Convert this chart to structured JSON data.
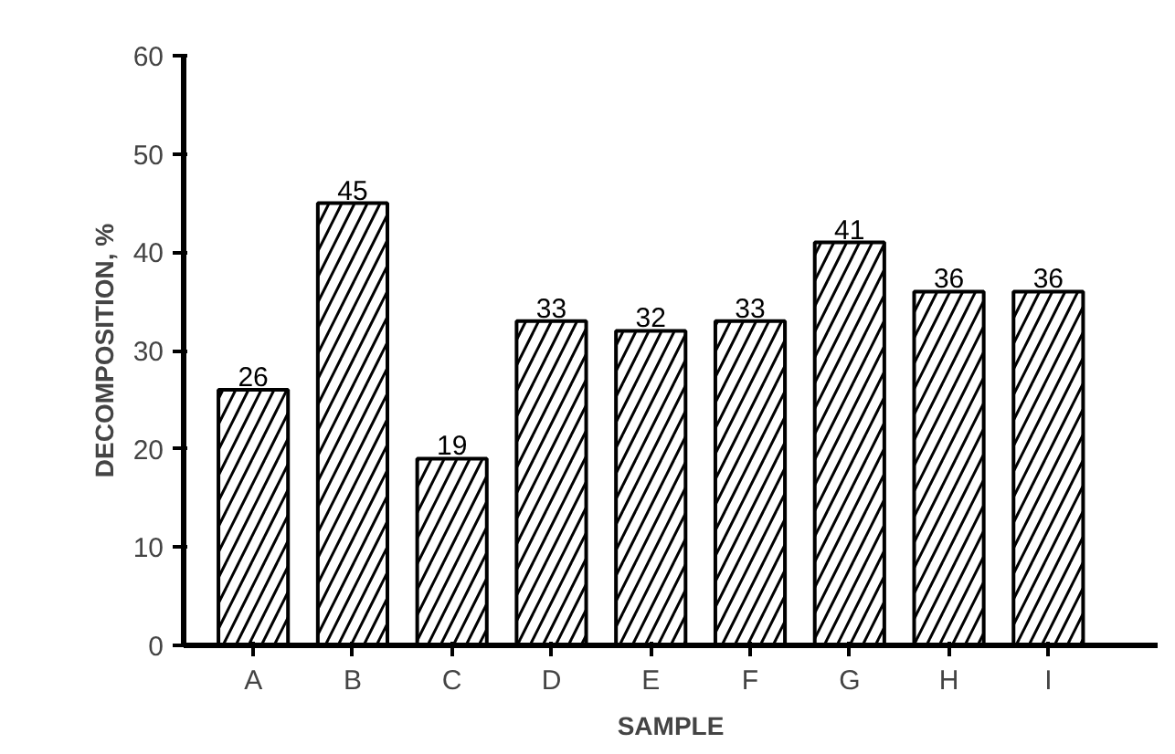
{
  "chart_data": {
    "type": "bar",
    "xlabel": "SAMPLE",
    "ylabel": "DECOMPOSITION, %",
    "categories": [
      "A",
      "B",
      "C",
      "D",
      "E",
      "F",
      "G",
      "H",
      "I"
    ],
    "values": [
      26,
      45,
      19,
      33,
      32,
      33,
      41,
      36,
      36
    ],
    "color": "#000000",
    "ylim": [
      0,
      60
    ],
    "yticks": [
      0,
      10,
      20,
      30,
      40,
      50,
      60
    ],
    "data_labels": true,
    "grid": false
  }
}
